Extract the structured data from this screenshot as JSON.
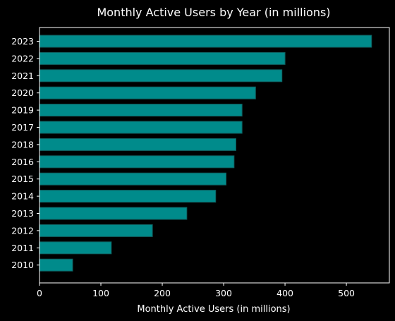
{
  "chart_data": {
    "type": "bar",
    "orientation": "horizontal",
    "title": "Monthly Active Users by Year (in millions)",
    "xlabel": "Monthly Active Users (in millions)",
    "ylabel": "",
    "categories": [
      "2023",
      "2022",
      "2021",
      "2020",
      "2019",
      "2017",
      "2018",
      "2016",
      "2015",
      "2014",
      "2013",
      "2012",
      "2011",
      "2010"
    ],
    "values": [
      541,
      400,
      395,
      352,
      330,
      330,
      320,
      317,
      304,
      287,
      240,
      184,
      117,
      54
    ],
    "xlim": [
      0,
      570
    ],
    "xticks": [
      "0",
      "100",
      "200",
      "300",
      "400",
      "500"
    ],
    "grid": false,
    "colors": {
      "background": "#000000",
      "bar": "#008b8b",
      "bar_edge": "#0f5f5f",
      "text": "#ffffff",
      "axis": "#ffffff"
    }
  }
}
